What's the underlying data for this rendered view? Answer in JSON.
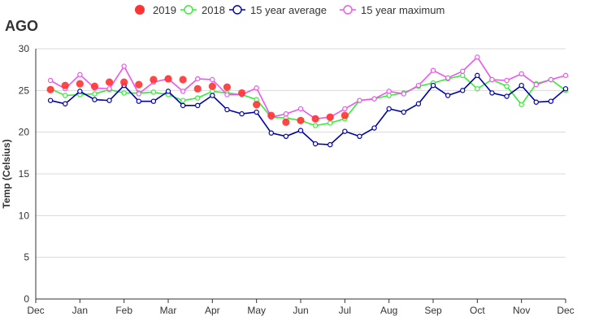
{
  "chart_data": {
    "type": "line",
    "title": "AGO",
    "ylabel": "Temp (Celsius)",
    "xlabel": "",
    "ylim": [
      0,
      30
    ],
    "yticks": [
      0,
      5,
      10,
      15,
      20,
      25,
      30
    ],
    "xlim": [
      0,
      36
    ],
    "xticks": [
      {
        "label": "Dec",
        "pos": 0
      },
      {
        "label": "Jan",
        "pos": 3
      },
      {
        "label": "Feb",
        "pos": 6
      },
      {
        "label": "Mar",
        "pos": 9
      },
      {
        "label": "Apr",
        "pos": 12
      },
      {
        "label": "May",
        "pos": 15
      },
      {
        "label": "Jun",
        "pos": 18
      },
      {
        "label": "Jul",
        "pos": 21
      },
      {
        "label": "Aug",
        "pos": 24
      },
      {
        "label": "Sep",
        "pos": 27
      },
      {
        "label": "Oct",
        "pos": 30
      },
      {
        "label": "Nov",
        "pos": 33
      },
      {
        "label": "Dec",
        "pos": 36
      }
    ],
    "grid": true,
    "legend_position": "top-center",
    "series": [
      {
        "name": "2019",
        "style": "markers",
        "color": "#ff3333",
        "x": [
          1,
          2,
          3,
          4,
          5,
          6,
          7,
          8,
          9,
          10,
          11,
          12,
          13,
          14,
          15,
          16,
          17,
          18,
          19,
          20,
          21
        ],
        "values": [
          25.1,
          25.6,
          25.8,
          25.5,
          26.0,
          26.0,
          25.7,
          26.3,
          26.4,
          26.3,
          25.2,
          25.5,
          25.4,
          24.7,
          23.3,
          22.0,
          21.2,
          21.4,
          21.6,
          21.8,
          22.0
        ]
      },
      {
        "name": "2018",
        "style": "line",
        "color": "#33ee33",
        "x": [
          1,
          2,
          3,
          4,
          5,
          6,
          7,
          8,
          9,
          10,
          11,
          12,
          13,
          14,
          15,
          16,
          17,
          18,
          19,
          20,
          21,
          22,
          23,
          24,
          25,
          26,
          27,
          28,
          29,
          30,
          31,
          32,
          33,
          34,
          35,
          36
        ],
        "values": [
          25.2,
          24.4,
          24.5,
          24.6,
          25.1,
          24.7,
          24.7,
          24.8,
          24.5,
          23.8,
          24.1,
          24.9,
          24.7,
          24.5,
          23.9,
          21.8,
          21.7,
          21.4,
          20.8,
          21.1,
          21.6,
          23.8,
          24.0,
          24.4,
          24.7,
          25.5,
          25.9,
          26.4,
          26.8,
          25.2,
          26.3,
          25.5,
          23.3,
          25.8,
          26.3,
          25.0
        ]
      },
      {
        "name": "15 year average",
        "style": "line",
        "color": "#0000aa",
        "x": [
          1,
          2,
          3,
          4,
          5,
          6,
          7,
          8,
          9,
          10,
          11,
          12,
          13,
          14,
          15,
          16,
          17,
          18,
          19,
          20,
          21,
          22,
          23,
          24,
          25,
          26,
          27,
          28,
          29,
          30,
          31,
          32,
          33,
          34,
          35,
          36
        ],
        "values": [
          23.8,
          23.4,
          24.9,
          23.9,
          23.8,
          25.6,
          23.7,
          23.7,
          24.9,
          23.2,
          23.2,
          24.4,
          22.7,
          22.2,
          22.4,
          19.9,
          19.5,
          20.2,
          18.6,
          18.5,
          20.1,
          19.5,
          20.5,
          22.8,
          22.4,
          23.4,
          25.6,
          24.4,
          25.0,
          26.8,
          24.7,
          24.3,
          25.6,
          23.6,
          23.7,
          25.2
        ]
      },
      {
        "name": "15 year maximum",
        "style": "line",
        "color": "#ee55ee",
        "x": [
          1,
          2,
          3,
          4,
          5,
          6,
          7,
          8,
          9,
          10,
          11,
          12,
          13,
          14,
          15,
          16,
          17,
          18,
          19,
          20,
          21,
          22,
          23,
          24,
          25,
          26,
          27,
          28,
          29,
          30,
          31,
          32,
          33,
          34,
          35,
          36
        ],
        "values": [
          26.2,
          25.2,
          26.9,
          25.3,
          25.2,
          27.9,
          24.6,
          26.0,
          26.4,
          24.9,
          26.4,
          26.3,
          24.5,
          24.5,
          25.3,
          21.8,
          22.2,
          22.8,
          21.6,
          21.8,
          22.8,
          23.8,
          24.0,
          24.9,
          24.6,
          25.6,
          27.4,
          26.5,
          27.3,
          29.0,
          26.3,
          26.2,
          27.0,
          25.7,
          26.3,
          26.8
        ]
      }
    ]
  }
}
